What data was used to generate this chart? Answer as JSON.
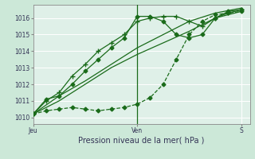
{
  "xlabel": "Pression niveau de la mer( hPa )",
  "background_color": "#cce8d8",
  "plot_bg_color": "#dff0e8",
  "grid_color": "#ffffff",
  "line_color": "#1a6b1a",
  "ylim": [
    1009.6,
    1016.8
  ],
  "xlim": [
    0,
    50
  ],
  "yticks": [
    1010,
    1011,
    1012,
    1013,
    1014,
    1015,
    1016
  ],
  "xticks": [
    0,
    24,
    48
  ],
  "xtick_labels": [
    "Jeu",
    "Ven",
    "S"
  ],
  "day_lines": [
    24
  ],
  "series": [
    {
      "x": [
        0,
        3,
        6,
        9,
        12,
        15,
        18,
        21,
        24,
        27,
        30,
        33,
        36,
        39,
        42,
        45,
        48
      ],
      "y": [
        1010.2,
        1010.4,
        1010.5,
        1010.6,
        1010.5,
        1010.4,
        1010.5,
        1010.6,
        1010.8,
        1011.2,
        1012.0,
        1013.5,
        1015.0,
        1015.8,
        1016.2,
        1016.3,
        1016.4
      ],
      "style": "--",
      "marker": "D",
      "ms": 2.5,
      "lw": 0.9
    },
    {
      "x": [
        0,
        3,
        6,
        9,
        12,
        15,
        18,
        21,
        24,
        27,
        30,
        33,
        36,
        39,
        42,
        45,
        48
      ],
      "y": [
        1010.2,
        1011.0,
        1011.5,
        1012.5,
        1013.2,
        1014.0,
        1014.5,
        1015.0,
        1015.8,
        1016.0,
        1016.1,
        1016.1,
        1015.8,
        1015.5,
        1016.0,
        1016.3,
        1016.5
      ],
      "style": "-",
      "marker": "+",
      "ms": 4,
      "lw": 0.9
    },
    {
      "x": [
        0,
        3,
        6,
        9,
        12,
        15,
        18,
        21,
        24,
        27,
        30,
        33,
        36,
        39,
        42,
        45,
        48
      ],
      "y": [
        1010.2,
        1011.1,
        1011.3,
        1012.0,
        1012.8,
        1013.5,
        1014.2,
        1014.8,
        1016.1,
        1016.1,
        1015.8,
        1015.0,
        1014.8,
        1015.0,
        1016.0,
        1016.4,
        1016.5
      ],
      "style": "-",
      "marker": "D",
      "ms": 2.5,
      "lw": 0.9
    },
    {
      "x": [
        0,
        6,
        12,
        18,
        24,
        30,
        36,
        42,
        48
      ],
      "y": [
        1010.2,
        1011.0,
        1012.0,
        1013.0,
        1013.8,
        1014.5,
        1015.2,
        1016.0,
        1016.4
      ],
      "style": "-",
      "marker": null,
      "ms": 0,
      "lw": 0.9
    },
    {
      "x": [
        0,
        6,
        12,
        18,
        24,
        30,
        36,
        42,
        48
      ],
      "y": [
        1010.2,
        1011.3,
        1012.2,
        1013.2,
        1014.2,
        1015.0,
        1015.8,
        1016.3,
        1016.6
      ],
      "style": "-",
      "marker": null,
      "ms": 0,
      "lw": 0.9
    }
  ]
}
